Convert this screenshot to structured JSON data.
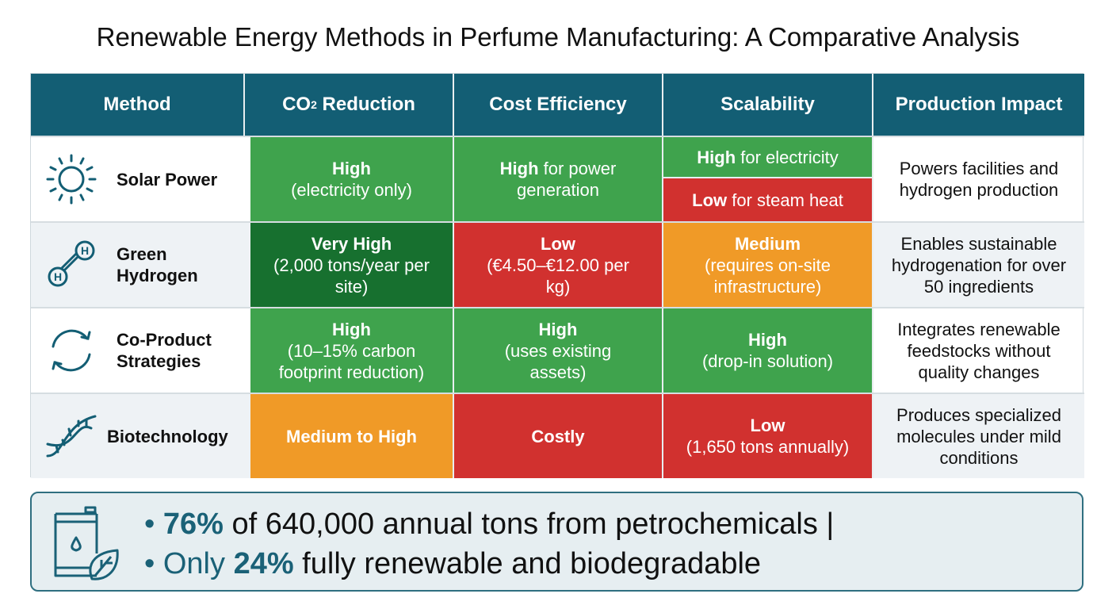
{
  "title": "Renewable Energy Methods in Perfume Manufacturing: A Comparative Analysis",
  "headers": {
    "method": "Method",
    "co2_pre": "CO",
    "co2_sub": "2",
    "co2_post": " Reduction",
    "cost": "Cost Efficiency",
    "scal": "Scalability",
    "impact": "Production Impact"
  },
  "rows": [
    {
      "method": "Solar Power",
      "co2_b": "High",
      "co2_t": "(electricity only)",
      "cost_b": "High",
      "cost_t": " for power generation",
      "scal1_b": "High",
      "scal1_t": " for electricity",
      "scal2_b": "Low",
      "scal2_t": " for steam heat",
      "impact": "Powers facilities and hydrogen production"
    },
    {
      "method": "Green Hydrogen",
      "co2_b": "Very High",
      "co2_t": "(2,000 tons/year per site)",
      "cost_b": "Low",
      "cost_t": "(€4.50–€12.00 per kg)",
      "scal_b": "Medium",
      "scal_t": "(requires on-site infrastructure)",
      "impact": "Enables sustainable hydrogenation for over 50 ingredients"
    },
    {
      "method": "Co-Product Strategies",
      "co2_b": "High",
      "co2_t": "(10–15% carbon footprint reduction)",
      "cost_b": "High",
      "cost_t": "(uses existing assets)",
      "scal_b": "High",
      "scal_t": "(drop-in solution)",
      "impact": "Integrates renewable feedstocks without quality changes"
    },
    {
      "method": "Biotechnology",
      "co2_b": "Medium to High",
      "cost_b": "Costly",
      "scal_b": "Low",
      "scal_t": "(1,650 tons annually)",
      "impact": "Produces specialized molecules under mild conditions"
    }
  ],
  "footer": {
    "l1_bullet": "• ",
    "l1_b": "76%",
    "l1_t": " of 640,000 annual tons from petrochemicals |",
    "l2_pre": "• Only ",
    "l2_b": "24%",
    "l2_t": " fully renewable and biodegradable"
  },
  "colors": {
    "header": "#135e74",
    "green": "#3fa34d",
    "dark_green": "#17702f",
    "red": "#d1312f",
    "orange": "#f09a27"
  }
}
